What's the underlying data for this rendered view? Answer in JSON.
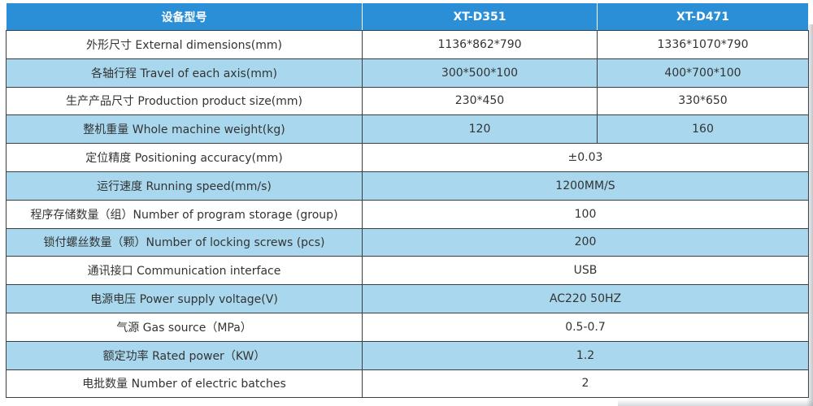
{
  "header": {
    "col_name": "设备型号",
    "col_a": "XT-D351",
    "col_b": "XT-D471"
  },
  "rows": [
    {
      "name": "外形尺寸 External dimensions(mm)",
      "a": "1136*862*790",
      "b": "1336*1070*790"
    },
    {
      "name": "各轴行程 Travel of each axis(mm)",
      "a": "300*500*100",
      "b": "400*700*100"
    },
    {
      "name": "生产产品尺寸 Production product size(mm)",
      "a": "230*450",
      "b": "330*650"
    },
    {
      "name": "整机重量 Whole machine weight(kg)",
      "a": "120",
      "b": "160"
    },
    {
      "name": "定位精度 Positioning accuracy(mm)",
      "value": "±0.03"
    },
    {
      "name": "运行速度 Running speed(mm/s)",
      "value": "1200MM/S"
    },
    {
      "name": "程序存储数量（组）Number of program storage (group)",
      "value": "100"
    },
    {
      "name": "锁付螺丝数量（颗）Number of locking screws (pcs)",
      "value": "200"
    },
    {
      "name": "通讯接口 Communication interface",
      "value": "USB"
    },
    {
      "name": "电源电压 Power supply voltage(V)",
      "value": "AC220 50HZ"
    },
    {
      "name": "气源 Gas source（MPa）",
      "value": "0.5-0.7"
    },
    {
      "name": "额定功率 Rated power（KW）",
      "value": "1.2"
    },
    {
      "name": "电批数量 Number of electric batches",
      "value": "2"
    }
  ],
  "colors": {
    "header_bg": "#2a8fd6",
    "stripe_bg": "#a9d8ee",
    "border": "#3a3f44"
  }
}
